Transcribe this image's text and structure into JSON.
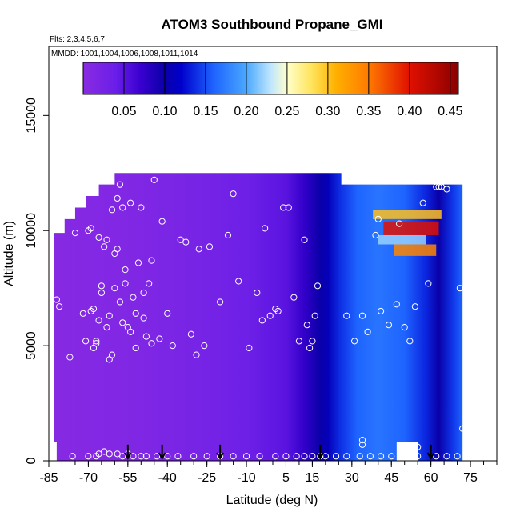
{
  "chart_data": {
    "type": "heatmap",
    "title": "ATOM3 Southbound Propane_GMI",
    "subtitle_flights": "Flts: 2,3,4,5,6,7",
    "subtitle_dates": "MMDD: 1001,1004,1006,1008,1011,1014",
    "xlabel": "Latitude (deg N)",
    "ylabel": "Altitude (m)",
    "xlim": [
      -85,
      85
    ],
    "ylim": [
      0,
      18000
    ],
    "x_tick_labels": [
      "-85",
      "-70",
      "-55",
      "-40",
      "-25",
      "-10",
      "5",
      "15",
      "30",
      "45",
      "60",
      "75"
    ],
    "x_tick_values": [
      -85,
      -70,
      -55,
      -40,
      -25,
      -10,
      5,
      15,
      30,
      45,
      60,
      75
    ],
    "x_minor_step": 5,
    "y_ticks": [
      0,
      5000,
      10000,
      15000
    ],
    "y_tick_labels": [
      "0",
      "5000",
      "10000",
      "15000"
    ],
    "colorbar": {
      "min": 0.0,
      "max": 0.46,
      "tick_values": [
        0.05,
        0.1,
        0.15,
        0.2,
        0.25,
        0.3,
        0.35,
        0.4,
        0.45
      ],
      "tick_labels": [
        "0.05",
        "0.10",
        "0.15",
        "0.20",
        "0.25",
        "0.30",
        "0.35",
        "0.40",
        "0.45"
      ],
      "stops": [
        [
          0.0,
          "#8a2be2"
        ],
        [
          0.04,
          "#6a1ee8"
        ],
        [
          0.07,
          "#3a00d0"
        ],
        [
          0.1,
          "#0a00a8"
        ],
        [
          0.12,
          "#0000cc"
        ],
        [
          0.16,
          "#1e64ff"
        ],
        [
          0.2,
          "#4aa8ff"
        ],
        [
          0.23,
          "#bfe6ff"
        ],
        [
          0.25,
          "#ffffcc"
        ],
        [
          0.28,
          "#ffe45c"
        ],
        [
          0.31,
          "#ffb000"
        ],
        [
          0.35,
          "#ff7a00"
        ],
        [
          0.4,
          "#e01000"
        ],
        [
          0.46,
          "#8a0000"
        ]
      ]
    },
    "field_extent": {
      "lat": [
        -83,
        72
      ],
      "alt": [
        0,
        12500
      ]
    },
    "profile_markers_lat": [
      -55,
      -42,
      -20,
      18,
      60
    ],
    "sample_points": [
      [
        -82,
        7000
      ],
      [
        -81,
        6700
      ],
      [
        -77,
        4500
      ],
      [
        -75,
        9900
      ],
      [
        -72,
        6400
      ],
      [
        -71,
        5200
      ],
      [
        -70,
        10000
      ],
      [
        -69,
        10100
      ],
      [
        -69,
        6500
      ],
      [
        -68,
        6600
      ],
      [
        -68,
        4900
      ],
      [
        -67,
        5200
      ],
      [
        -67,
        5100
      ],
      [
        -66,
        9700
      ],
      [
        -66,
        6100
      ],
      [
        -65,
        7600
      ],
      [
        -65,
        7300
      ],
      [
        -64,
        9300
      ],
      [
        -63,
        9600
      ],
      [
        -63,
        5800
      ],
      [
        -62,
        6300
      ],
      [
        -62,
        4400
      ],
      [
        -61,
        4600
      ],
      [
        -61,
        10900
      ],
      [
        -60,
        9000
      ],
      [
        -60,
        7500
      ],
      [
        -59,
        9200
      ],
      [
        -59,
        11400
      ],
      [
        -58,
        12000
      ],
      [
        -58,
        6900
      ],
      [
        -57,
        6000
      ],
      [
        -57,
        11000
      ],
      [
        -56,
        8300
      ],
      [
        -56,
        7700
      ],
      [
        -55,
        5800
      ],
      [
        -54,
        11200
      ],
      [
        -54,
        5600
      ],
      [
        -53,
        7100
      ],
      [
        -52,
        4900
      ],
      [
        -52,
        6400
      ],
      [
        -51,
        8600
      ],
      [
        -50,
        11000
      ],
      [
        -49,
        7300
      ],
      [
        -49,
        6200
      ],
      [
        -48,
        5400
      ],
      [
        -47,
        7700
      ],
      [
        -46,
        5100
      ],
      [
        -46,
        8700
      ],
      [
        -45,
        12200
      ],
      [
        -43,
        5300
      ],
      [
        -42,
        10400
      ],
      [
        -40,
        6400
      ],
      [
        -38,
        5000
      ],
      [
        -35,
        9600
      ],
      [
        -33,
        9500
      ],
      [
        -31,
        5500
      ],
      [
        -29,
        4600
      ],
      [
        -28,
        9200
      ],
      [
        -26,
        5000
      ],
      [
        -24,
        9300
      ],
      [
        -20,
        6900
      ],
      [
        -17,
        9800
      ],
      [
        -15,
        11600
      ],
      [
        -13,
        7800
      ],
      [
        -9,
        4900
      ],
      [
        -6,
        7300
      ],
      [
        -4,
        6100
      ],
      [
        -3,
        10100
      ],
      [
        -1,
        6300
      ],
      [
        1,
        6600
      ],
      [
        2,
        6500
      ],
      [
        4,
        11000
      ],
      [
        6,
        11000
      ],
      [
        8,
        7100
      ],
      [
        10,
        5200
      ],
      [
        12,
        9600
      ],
      [
        13,
        5900
      ],
      [
        14,
        4900
      ],
      [
        15,
        5200
      ],
      [
        16,
        6300
      ],
      [
        17,
        7600
      ],
      [
        28,
        6300
      ],
      [
        31,
        5200
      ],
      [
        34,
        6300
      ],
      [
        36,
        5600
      ],
      [
        39,
        9800
      ],
      [
        40,
        10500
      ],
      [
        41,
        6500
      ],
      [
        44,
        5900
      ],
      [
        47,
        6800
      ],
      [
        48,
        10300
      ],
      [
        50,
        5800
      ],
      [
        52,
        5200
      ],
      [
        54,
        6700
      ],
      [
        57,
        11200
      ],
      [
        59,
        7700
      ],
      [
        62,
        11900
      ],
      [
        63,
        11900
      ],
      [
        64,
        11900
      ],
      [
        66,
        11800
      ],
      [
        71,
        7500
      ],
      [
        72,
        1400
      ],
      [
        34,
        700
      ],
      [
        34,
        900
      ],
      [
        50,
        500
      ],
      [
        55,
        600
      ],
      [
        -76,
        200
      ],
      [
        -70,
        200
      ],
      [
        -67,
        200
      ],
      [
        -66,
        300
      ],
      [
        -64,
        400
      ],
      [
        -62,
        300
      ],
      [
        -59,
        300
      ],
      [
        -57,
        200
      ],
      [
        -55,
        300
      ],
      [
        -53,
        200
      ],
      [
        -50,
        200
      ],
      [
        -48,
        200
      ],
      [
        -44,
        200
      ],
      [
        -40,
        200
      ],
      [
        -36,
        200
      ],
      [
        -30,
        200
      ],
      [
        -25,
        200
      ],
      [
        -20,
        200
      ],
      [
        -15,
        200
      ],
      [
        -10,
        200
      ],
      [
        -5,
        200
      ],
      [
        1,
        200
      ],
      [
        5,
        200
      ],
      [
        9,
        200
      ],
      [
        12,
        200
      ],
      [
        15,
        200
      ],
      [
        18,
        200
      ],
      [
        20,
        200
      ],
      [
        24,
        200
      ],
      [
        28,
        200
      ],
      [
        33,
        200
      ],
      [
        37,
        200
      ],
      [
        41,
        200
      ],
      [
        45,
        200
      ],
      [
        50,
        200
      ],
      [
        55,
        200
      ],
      [
        62,
        200
      ],
      [
        66,
        200
      ],
      [
        70,
        200
      ]
    ]
  }
}
